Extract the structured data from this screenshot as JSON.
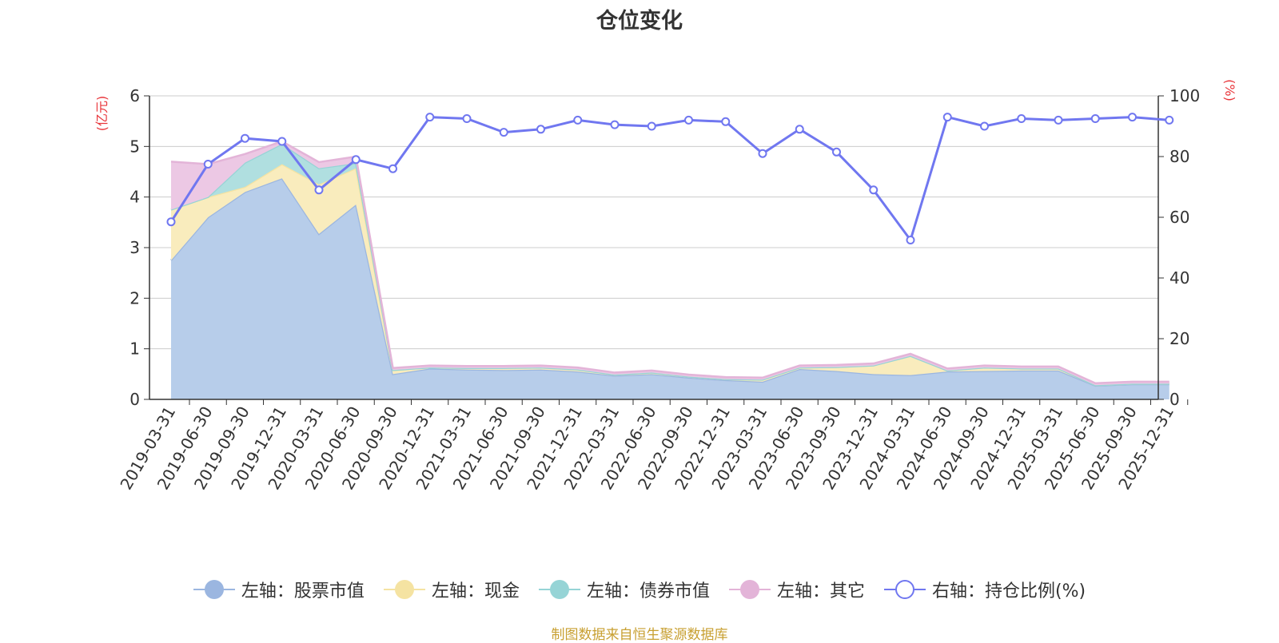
{
  "title": "仓位变化",
  "source_note": "制图数据来自恒生聚源数据库",
  "chart_data": {
    "type": "area",
    "title": "仓位变化",
    "x": [
      "2019-03-31",
      "2019-06-30",
      "2019-09-30",
      "2019-12-31",
      "2020-03-31",
      "2020-06-30",
      "2020-09-30",
      "2020-12-31",
      "2021-03-31",
      "2021-06-30",
      "2021-09-30",
      "2021-12-31",
      "2022-03-31",
      "2022-06-30",
      "2022-09-30",
      "2022-12-31",
      "2023-03-31",
      "2023-06-30",
      "2023-09-30",
      "2023-12-31",
      "2024-03-31",
      "2024-06-30",
      "2024-09-30",
      "2024-12-31",
      "2025-03-31",
      "2025-06-30",
      "2025-09-30",
      "2025-12-31"
    ],
    "y_left": {
      "unit": "(亿元)",
      "min": 0,
      "max": 6,
      "ticks": [
        0,
        1,
        2,
        3,
        4,
        5,
        6
      ]
    },
    "y_right": {
      "unit": "(%)",
      "min": 0,
      "max": 100,
      "ticks": [
        0,
        20,
        40,
        60,
        80,
        100
      ]
    },
    "grid": true,
    "legend_position": "bottom",
    "series": [
      {
        "name": "左轴：股票市值",
        "axis": "left",
        "kind": "stacked-area",
        "color": "#9bb6e0",
        "fill": "#b7cdea",
        "values": [
          2.75,
          3.6,
          4.1,
          4.37,
          3.27,
          3.85,
          0.5,
          0.61,
          0.59,
          0.58,
          0.59,
          0.55,
          0.47,
          0.5,
          0.43,
          0.38,
          0.35,
          0.6,
          0.56,
          0.5,
          0.48,
          0.55,
          0.56,
          0.57,
          0.57,
          0.27,
          0.3,
          0.3
        ]
      },
      {
        "name": "左轴：现金",
        "axis": "left",
        "kind": "stacked-area",
        "color": "#f5e3a2",
        "fill": "#f9ecbd",
        "values": [
          1.0,
          0.4,
          0.1,
          0.28,
          0.98,
          0.72,
          0.08,
          0.02,
          0.03,
          0.04,
          0.04,
          0.04,
          0.02,
          0.03,
          0.02,
          0.02,
          0.04,
          0.03,
          0.08,
          0.17,
          0.38,
          0.02,
          0.07,
          0.04,
          0.04,
          0.01,
          0.01,
          0.01
        ]
      },
      {
        "name": "左轴：债券市值",
        "axis": "left",
        "kind": "stacked-area",
        "color": "#96d4d6",
        "fill": "#b0dfe0",
        "values": [
          0,
          0,
          0.48,
          0.4,
          0.32,
          0.1,
          0,
          0,
          0,
          0,
          0,
          0,
          0,
          0,
          0,
          0,
          0,
          0,
          0,
          0,
          0,
          0,
          0,
          0,
          0,
          0,
          0,
          0
        ]
      },
      {
        "name": "左轴：其它",
        "axis": "left",
        "kind": "stacked-area",
        "color": "#e3b4d8",
        "fill": "#ecc8e4",
        "values": [
          0.95,
          0.65,
          0.17,
          0.05,
          0.12,
          0.13,
          0.04,
          0.04,
          0.04,
          0.04,
          0.04,
          0.04,
          0.04,
          0.04,
          0.04,
          0.04,
          0.04,
          0.04,
          0.04,
          0.04,
          0.04,
          0.04,
          0.04,
          0.04,
          0.04,
          0.04,
          0.04,
          0.04
        ]
      },
      {
        "name": "右轴：持仓比例(%)",
        "axis": "right",
        "kind": "line",
        "color": "#7077f0",
        "values": [
          58.5,
          77.5,
          86,
          85,
          69,
          79,
          76,
          93,
          92.5,
          88,
          89,
          92,
          90.5,
          90,
          92,
          91.5,
          81,
          89,
          81.5,
          69,
          52.5,
          93,
          90,
          92.5,
          92,
          92.5,
          93,
          92
        ]
      }
    ]
  }
}
